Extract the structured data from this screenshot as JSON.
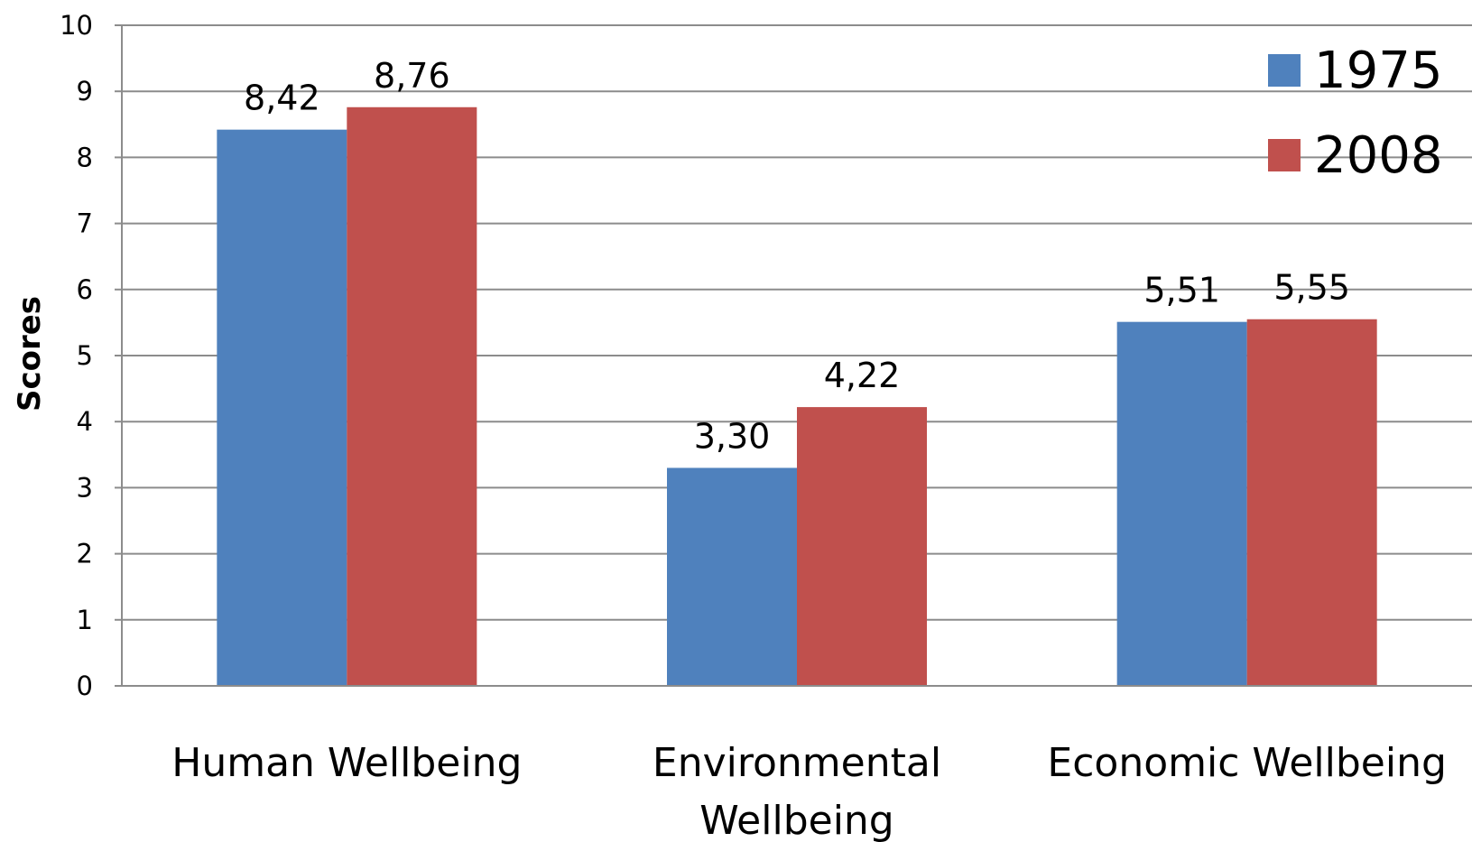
{
  "chart_data": {
    "type": "bar",
    "title": "",
    "xlabel": "",
    "ylabel": "Scores",
    "ylim": [
      0,
      10
    ],
    "yticks": [
      0,
      1,
      2,
      3,
      4,
      5,
      6,
      7,
      8,
      9,
      10
    ],
    "grid": true,
    "legend_position": "top-right",
    "categories": [
      [
        "Human Wellbeing"
      ],
      [
        "Environmental",
        "Wellbeing"
      ],
      [
        "Economic Wellbeing"
      ]
    ],
    "series": [
      {
        "name": "1975",
        "color": "#4F81BD",
        "values": [
          8.42,
          3.3,
          5.51
        ],
        "labels": [
          "8,42",
          "3,30",
          "5,51"
        ]
      },
      {
        "name": "2008",
        "color": "#C0504D",
        "values": [
          8.76,
          4.22,
          5.55
        ],
        "labels": [
          "8,76",
          "4,22",
          "5,55"
        ]
      }
    ]
  }
}
